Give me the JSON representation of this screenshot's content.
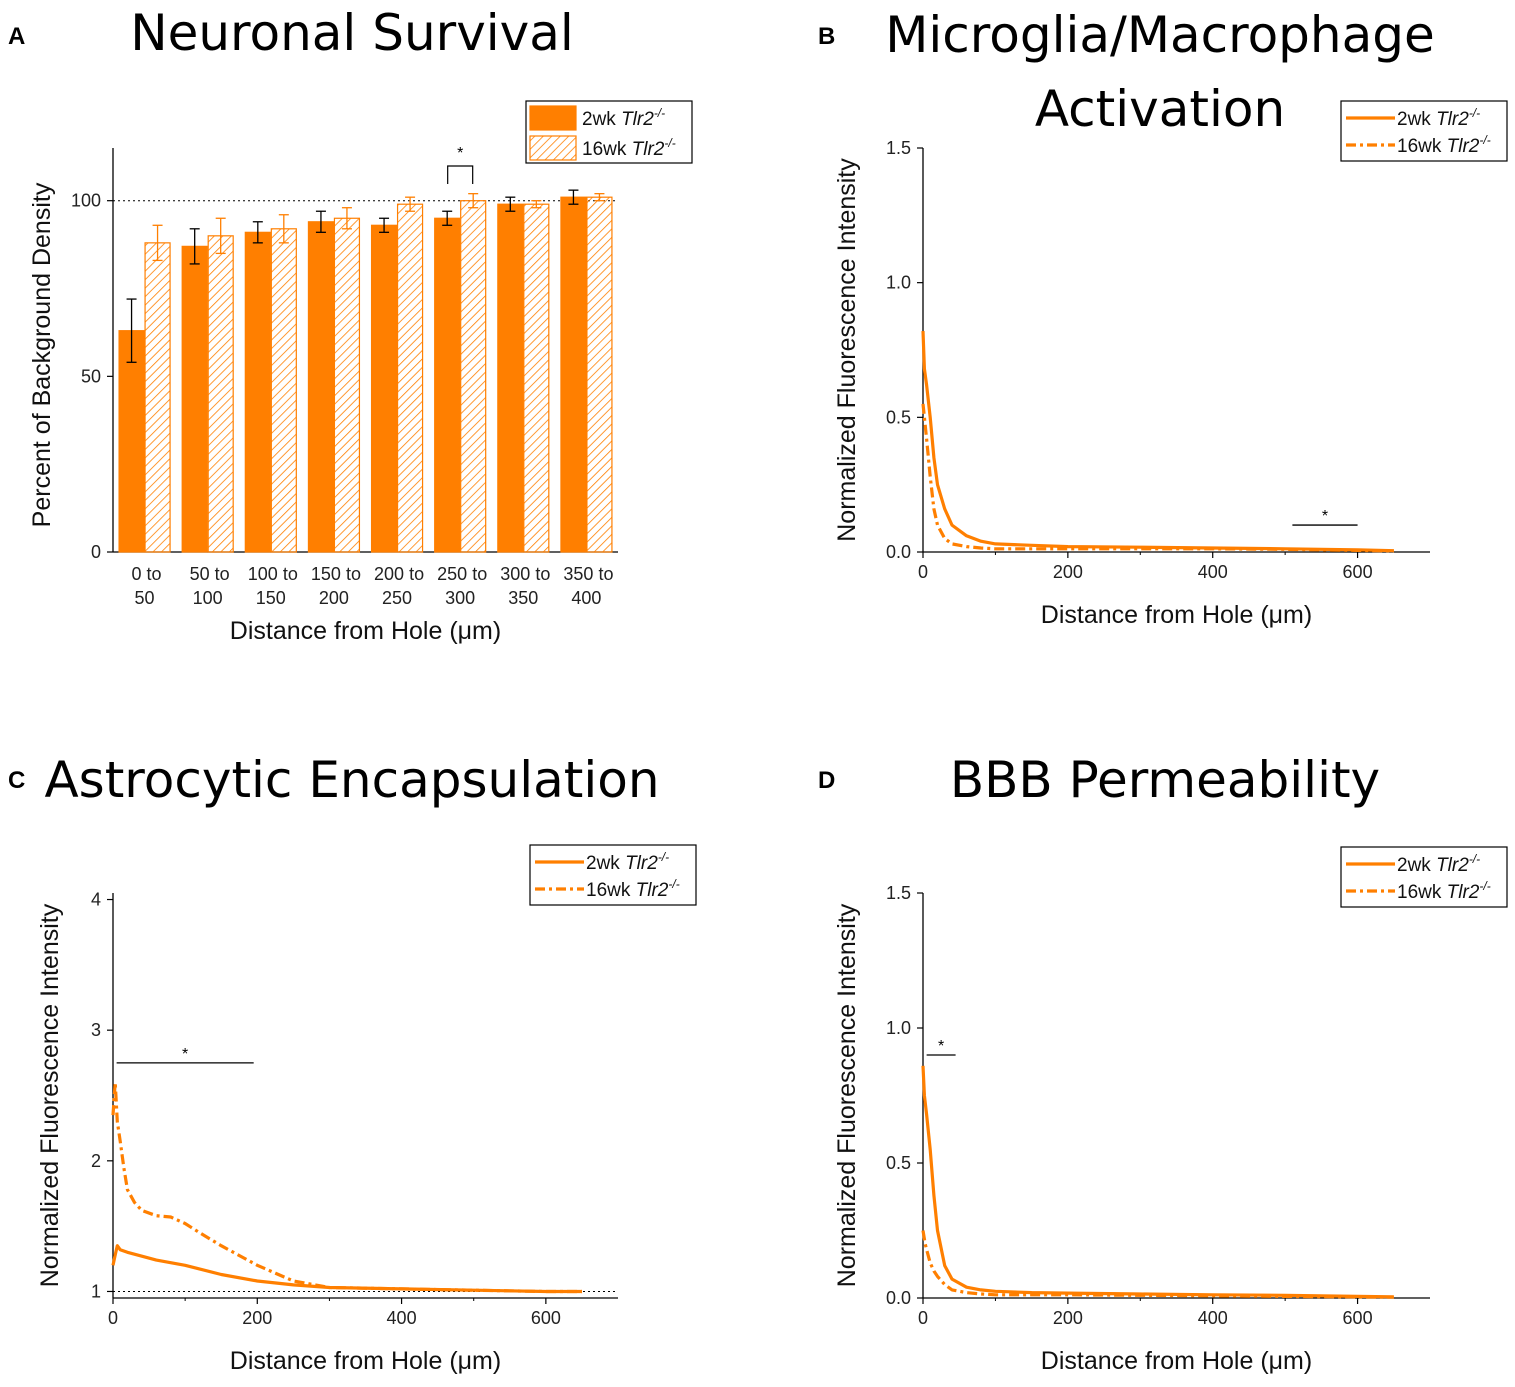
{
  "colors": {
    "orange": "#ff7f00",
    "axis": "#000000",
    "background": "#ffffff"
  },
  "chart_data": [
    {
      "panel": "A",
      "type": "bar",
      "title": "Neuronal Survival",
      "xlabel": "Distance from Hole (μm)",
      "ylabel": "Percent of Background Density",
      "ylim": [
        0,
        115
      ],
      "yticks": [
        "0",
        "50",
        "100"
      ],
      "reference_line": 100,
      "categories": [
        [
          "0 to",
          "50"
        ],
        [
          "50 to",
          "100"
        ],
        [
          "100 to",
          "150"
        ],
        [
          "150 to",
          "200"
        ],
        [
          "200 to",
          "250"
        ],
        [
          "250 to",
          "300"
        ],
        [
          "300 to",
          "350"
        ],
        [
          "350 to",
          "400"
        ]
      ],
      "series": [
        {
          "name": "2wk Tlr2",
          "legend": "2wk Tlr2",
          "superscript": "-/-",
          "fill": "solid",
          "values": [
            63,
            87,
            91,
            94,
            93,
            95,
            99,
            101
          ],
          "errors": [
            9,
            5,
            3,
            3,
            2,
            2,
            2,
            2
          ]
        },
        {
          "name": "16wk Tlr2",
          "legend": "16wk Tlr2",
          "superscript": "-/-",
          "fill": "hatched",
          "values": [
            88,
            90,
            92,
            95,
            99,
            100,
            99,
            101
          ],
          "errors": [
            5,
            5,
            4,
            3,
            2,
            2,
            1,
            1
          ]
        }
      ],
      "significance": [
        {
          "label": "*",
          "category_index": 5
        }
      ]
    },
    {
      "panel": "B",
      "type": "line",
      "title": [
        "Microglia/Macrophage",
        "Activation"
      ],
      "xlabel": "Distance from Hole (μm)",
      "ylabel": "Normalized Fluorescence Intensity",
      "xlim": [
        0,
        700
      ],
      "ylim": [
        0,
        1.5
      ],
      "xticks": [
        "0",
        "200",
        "400",
        "600"
      ],
      "yticks": [
        "0.0",
        "0.5",
        "1.0",
        "1.5"
      ],
      "series": [
        {
          "name": "2wk Tlr2",
          "legend": "2wk Tlr2",
          "superscript": "-/-",
          "dash": "solid",
          "x": [
            0,
            2,
            5,
            10,
            15,
            20,
            30,
            40,
            60,
            80,
            100,
            150,
            200,
            300,
            400,
            500,
            600,
            650
          ],
          "y": [
            0.82,
            0.68,
            0.62,
            0.5,
            0.35,
            0.25,
            0.16,
            0.1,
            0.06,
            0.04,
            0.03,
            0.025,
            0.02,
            0.018,
            0.015,
            0.012,
            0.008,
            0.005
          ]
        },
        {
          "name": "16wk Tlr2",
          "legend": "16wk Tlr2",
          "superscript": "-/-",
          "dash": "dashdot",
          "x": [
            0,
            2,
            5,
            10,
            15,
            20,
            30,
            40,
            60,
            80,
            100,
            150,
            200,
            300,
            400,
            500,
            600,
            650
          ],
          "y": [
            0.55,
            0.5,
            0.42,
            0.28,
            0.16,
            0.1,
            0.05,
            0.03,
            0.02,
            0.015,
            0.012,
            0.012,
            0.012,
            0.012,
            0.012,
            0.01,
            0.006,
            0.004
          ]
        }
      ],
      "significance": [
        {
          "label": "*",
          "x_range": [
            510,
            600
          ],
          "y": 0.1
        }
      ]
    },
    {
      "panel": "C",
      "type": "line",
      "title": "Astrocytic Encapsulation",
      "xlabel": "Distance from Hole (μm)",
      "ylabel": "Normalized Fluorescence Intensity",
      "xlim": [
        0,
        700
      ],
      "ylim": [
        0.95,
        4.05
      ],
      "xticks": [
        "0",
        "200",
        "400",
        "600"
      ],
      "yticks": [
        "1",
        "2",
        "3",
        "4"
      ],
      "reference_line": 1,
      "series": [
        {
          "name": "2wk Tlr2",
          "legend": "2wk Tlr2",
          "superscript": "-/-",
          "dash": "solid",
          "x": [
            0,
            3,
            6,
            10,
            20,
            40,
            60,
            80,
            100,
            150,
            200,
            250,
            300,
            400,
            500,
            600,
            650
          ],
          "y": [
            1.2,
            1.28,
            1.35,
            1.32,
            1.3,
            1.27,
            1.24,
            1.22,
            1.2,
            1.13,
            1.08,
            1.05,
            1.03,
            1.02,
            1.01,
            1.0,
            1.0
          ]
        },
        {
          "name": "16wk Tlr2",
          "legend": "16wk Tlr2",
          "superscript": "-/-",
          "dash": "dashdot",
          "x": [
            0,
            3,
            6,
            10,
            15,
            20,
            30,
            40,
            60,
            80,
            100,
            120,
            150,
            200,
            250,
            300,
            400,
            500,
            600,
            650
          ],
          "y": [
            2.35,
            2.6,
            2.3,
            2.15,
            1.95,
            1.78,
            1.68,
            1.62,
            1.58,
            1.57,
            1.52,
            1.45,
            1.35,
            1.2,
            1.08,
            1.03,
            1.02,
            1.01,
            1.0,
            1.0
          ]
        }
      ],
      "significance": [
        {
          "label": "*",
          "x_range": [
            5,
            195
          ],
          "y": 2.75
        }
      ]
    },
    {
      "panel": "D",
      "type": "line",
      "title": "BBB Permeability",
      "xlabel": "Distance from Hole (μm)",
      "ylabel": "Normalized Fluorescence Intensity",
      "xlim": [
        0,
        700
      ],
      "ylim": [
        0,
        1.5
      ],
      "xticks": [
        "0",
        "200",
        "400",
        "600"
      ],
      "yticks": [
        "0.0",
        "0.5",
        "1.0",
        "1.5"
      ],
      "series": [
        {
          "name": "2wk Tlr2",
          "legend": "2wk Tlr2",
          "superscript": "-/-",
          "dash": "solid",
          "x": [
            0,
            2,
            5,
            10,
            15,
            20,
            30,
            40,
            60,
            80,
            100,
            150,
            200,
            300,
            400,
            500,
            600,
            650
          ],
          "y": [
            0.86,
            0.75,
            0.68,
            0.55,
            0.38,
            0.25,
            0.12,
            0.07,
            0.04,
            0.03,
            0.025,
            0.02,
            0.018,
            0.015,
            0.012,
            0.01,
            0.006,
            0.004
          ]
        },
        {
          "name": "16wk Tlr2",
          "legend": "16wk Tlr2",
          "superscript": "-/-",
          "dash": "dashdot",
          "x": [
            0,
            3,
            6,
            10,
            15,
            20,
            30,
            40,
            60,
            80,
            100,
            150,
            200,
            300,
            400,
            500,
            600,
            650
          ],
          "y": [
            0.25,
            0.2,
            0.17,
            0.13,
            0.1,
            0.08,
            0.05,
            0.03,
            0.02,
            0.015,
            0.012,
            0.012,
            0.012,
            0.01,
            0.008,
            0.006,
            0.004,
            0.003
          ]
        }
      ],
      "significance": [
        {
          "label": "*",
          "x_range": [
            5,
            45
          ],
          "y": 0.9
        }
      ]
    }
  ]
}
